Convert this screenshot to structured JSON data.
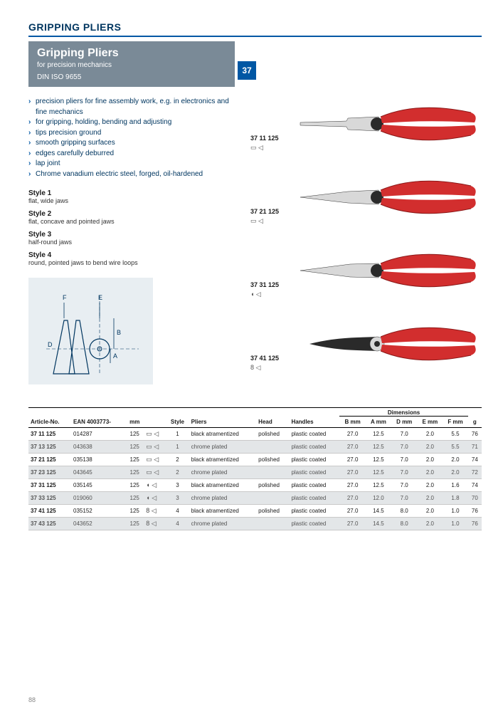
{
  "header": {
    "section": "GRIPPING PLIERS",
    "title": "Gripping Pliers",
    "subtitle": "for precision mechanics",
    "din": "DIN ISO 9655",
    "badge": "37"
  },
  "bullets": [
    "precision pliers for fine assembly work, e.g. in electronics and fine mechanics",
    "for gripping, holding, bending and adjusting",
    "tips precision ground",
    "smooth gripping surfaces",
    "edges carefully deburred",
    "lap joint",
    "Chrome vanadium electric steel, forged, oil-hardened"
  ],
  "styles": [
    {
      "title": "Style 1",
      "desc": "flat, wide jaws"
    },
    {
      "title": "Style 2",
      "desc": "flat, concave and pointed jaws"
    },
    {
      "title": "Style 3",
      "desc": "half-round jaws"
    },
    {
      "title": "Style 4",
      "desc": "round, pointed jaws to bend wire loops"
    }
  ],
  "products": [
    {
      "article": "37 11 125",
      "jaw_glyph": "▭ ◁"
    },
    {
      "article": "37 21 125",
      "jaw_glyph": "▭ ◁"
    },
    {
      "article": "37 31 125",
      "jaw_glyph": "◖ ◁"
    },
    {
      "article": "37 41 125",
      "jaw_glyph": "8 ◁"
    }
  ],
  "table": {
    "headers": {
      "article": "Article-No.",
      "ean": "EAN 4003773-",
      "len": "mm",
      "style": "Style",
      "pliers": "Pliers",
      "head": "Head",
      "handles": "Handles",
      "dim_super": "Dimensions",
      "B": "B mm",
      "A": "A mm",
      "D": "D mm",
      "E": "E mm",
      "F": "F mm",
      "g": "g"
    },
    "rows": [
      {
        "article": "37 11 125",
        "ean": "014287",
        "len": "125",
        "jaw": "▭ ◁",
        "style": "1",
        "pliers": "black atramentized",
        "head": "polished",
        "handles": "plastic coated",
        "B": "27.0",
        "A": "12.5",
        "D": "7.0",
        "E": "2.0",
        "F": "5.5",
        "g": "76",
        "shade": false
      },
      {
        "article": "37 13 125",
        "ean": "043638",
        "len": "125",
        "jaw": "▭ ◁",
        "style": "1",
        "pliers": "chrome plated",
        "head": "",
        "handles": "plastic coated",
        "B": "27.0",
        "A": "12.5",
        "D": "7.0",
        "E": "2.0",
        "F": "5.5",
        "g": "71",
        "shade": true
      },
      {
        "article": "37 21 125",
        "ean": "035138",
        "len": "125",
        "jaw": "▭ ◁",
        "style": "2",
        "pliers": "black atramentized",
        "head": "polished",
        "handles": "plastic coated",
        "B": "27.0",
        "A": "12.5",
        "D": "7.0",
        "E": "2.0",
        "F": "2.0",
        "g": "74",
        "shade": false
      },
      {
        "article": "37 23 125",
        "ean": "043645",
        "len": "125",
        "jaw": "▭ ◁",
        "style": "2",
        "pliers": "chrome plated",
        "head": "",
        "handles": "plastic coated",
        "B": "27.0",
        "A": "12.5",
        "D": "7.0",
        "E": "2.0",
        "F": "2.0",
        "g": "72",
        "shade": true
      },
      {
        "article": "37 31 125",
        "ean": "035145",
        "len": "125",
        "jaw": "◖ ◁",
        "style": "3",
        "pliers": "black atramentized",
        "head": "polished",
        "handles": "plastic coated",
        "B": "27.0",
        "A": "12.5",
        "D": "7.0",
        "E": "2.0",
        "F": "1.6",
        "g": "74",
        "shade": false
      },
      {
        "article": "37 33 125",
        "ean": "019060",
        "len": "125",
        "jaw": "◖ ◁",
        "style": "3",
        "pliers": "chrome plated",
        "head": "",
        "handles": "plastic coated",
        "B": "27.0",
        "A": "12.0",
        "D": "7.0",
        "E": "2.0",
        "F": "1.8",
        "g": "70",
        "shade": true
      },
      {
        "article": "37 41 125",
        "ean": "035152",
        "len": "125",
        "jaw": "8 ◁",
        "style": "4",
        "pliers": "black atramentized",
        "head": "polished",
        "handles": "plastic coated",
        "B": "27.0",
        "A": "14.5",
        "D": "8.0",
        "E": "2.0",
        "F": "1.0",
        "g": "76",
        "shade": false
      },
      {
        "article": "37 43 125",
        "ean": "043652",
        "len": "125",
        "jaw": "8 ◁",
        "style": "4",
        "pliers": "chrome plated",
        "head": "",
        "handles": "plastic coated",
        "B": "27.0",
        "A": "14.5",
        "D": "8.0",
        "E": "2.0",
        "F": "1.0",
        "g": "76",
        "shade": true
      }
    ]
  },
  "footer": {
    "page": "88"
  },
  "colors": {
    "handle": "#d22e2e",
    "handle_dark": "#8b1818",
    "metal_light": "#e8e8e8",
    "metal_dark": "#2a2a2a",
    "diagram_bg": "#e8eef2",
    "accent": "#0057a4"
  }
}
